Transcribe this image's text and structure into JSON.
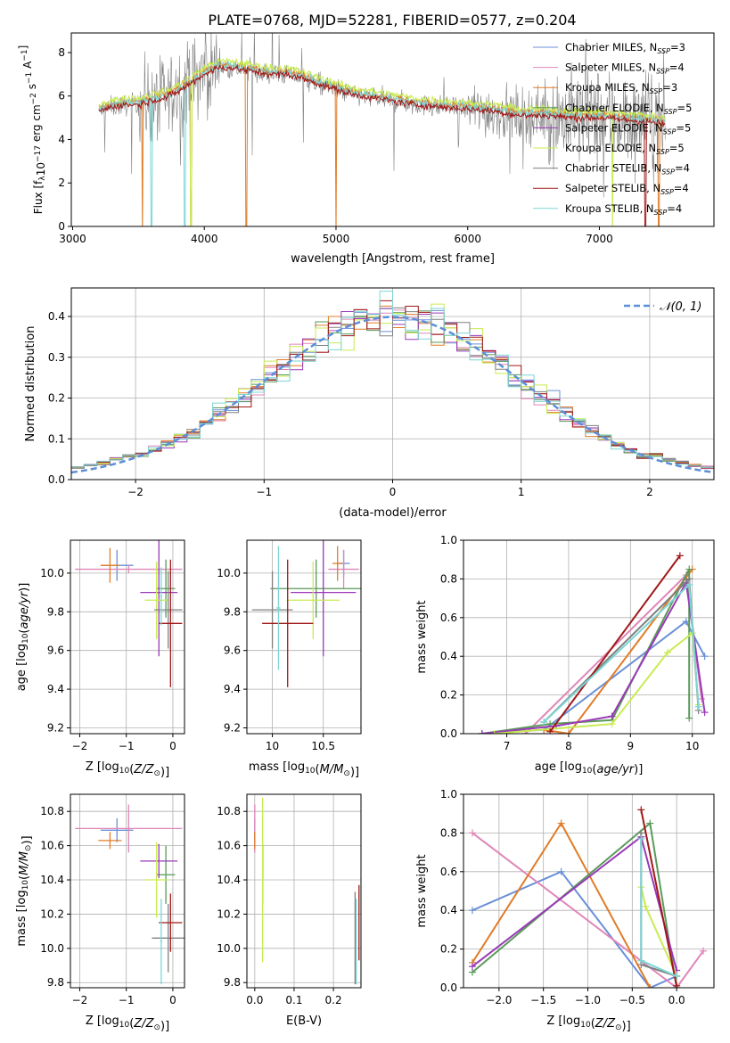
{
  "title": "PLATE=0768, MJD=52281, FIBERID=0577, z=0.204",
  "colors": {
    "blue": "#6a8fd8",
    "pink": "#e086b8",
    "orange": "#e07c28",
    "green": "#5a9a5a",
    "purple": "#9a3ab8",
    "lime": "#c8ec50",
    "gray": "#808080",
    "red": "#a01818",
    "cyan": "#7cd6d6",
    "dashed": "#5b8fd9",
    "grid": "#b0b0b0"
  },
  "chart_data": [
    {
      "id": "spectrum",
      "type": "line",
      "xlabel": "wavelength [Angstrom, rest frame]",
      "ylabel_main": "Flux [f",
      "ylabel_sub": "λ",
      "ylabel_rest": "10",
      "ylabel_exp": "−17",
      "ylabel_tail": " erg cm",
      "ylabel_exp2": "−2",
      "ylabel_tail2": " s",
      "ylabel_exp3": "−1",
      "ylabel_tail3": " A",
      "ylabel_exp4": "−1",
      "ylabel_end": "]",
      "xlim": [
        2990,
        7870
      ],
      "ylim": [
        0,
        8.9
      ],
      "xticks": [
        3000,
        4000,
        5000,
        6000,
        7000
      ],
      "yticks": [
        0,
        2,
        4,
        6,
        8
      ],
      "continuum": {
        "x": [
          3200,
          3300,
          3400,
          3500,
          3600,
          3700,
          3800,
          3900,
          4000,
          4100,
          4200,
          4300,
          4400,
          4500,
          4600,
          4700,
          4800,
          4900,
          5000,
          5100,
          5200,
          5400,
          5600,
          5800,
          6000,
          6200,
          6400,
          6600,
          6800,
          7000,
          7200,
          7400,
          7500
        ],
        "y": [
          5.3,
          5.5,
          5.6,
          5.6,
          5.8,
          5.9,
          6.2,
          6.6,
          7.0,
          7.3,
          7.3,
          7.2,
          7.1,
          7.0,
          7.0,
          6.9,
          6.7,
          6.5,
          6.3,
          6.1,
          6.0,
          5.8,
          5.6,
          5.5,
          5.4,
          5.3,
          5.1,
          5.1,
          5.0,
          5.0,
          4.9,
          4.8,
          4.7
        ]
      },
      "legend_position": "top-right",
      "legend": [
        {
          "label": "Chabrier MILES, N",
          "sub": "SSP",
          "tail": "=3",
          "color": "blue"
        },
        {
          "label": "Salpeter MILES, N",
          "sub": "SSP",
          "tail": "=4",
          "color": "pink"
        },
        {
          "label": "Kroupa MILES, N",
          "sub": "SSP",
          "tail": "=3",
          "color": "orange"
        },
        {
          "label": "Chabrier ELODIE, N",
          "sub": "SSP",
          "tail": "=5",
          "color": "green"
        },
        {
          "label": "Salpeter ELODIE, N",
          "sub": "SSP",
          "tail": "=5",
          "color": "purple"
        },
        {
          "label": "Kroupa ELODIE, N",
          "sub": "SSP",
          "tail": "=5",
          "color": "lime"
        },
        {
          "label": "Chabrier STELIB, N",
          "sub": "SSP",
          "tail": "=4",
          "color": "gray"
        },
        {
          "label": "Salpeter STELIB, N",
          "sub": "SSP",
          "tail": "=4",
          "color": "red"
        },
        {
          "label": "Kroupa STELIB, N",
          "sub": "SSP",
          "tail": "=4",
          "color": "cyan"
        }
      ]
    },
    {
      "id": "residuals",
      "type": "line",
      "xlabel": "(data-model)/error",
      "ylabel": "Normed distribution",
      "xlim": [
        -2.5,
        2.5
      ],
      "ylim": [
        0,
        0.47
      ],
      "xticks": [
        -2,
        -1,
        0,
        1,
        2
      ],
      "yticks": [
        0.0,
        0.1,
        0.2,
        0.3,
        0.4
      ],
      "gaussian_label": "𝒩(0, 1)",
      "legend_position": "top-right",
      "bin_width": 0.1
    },
    {
      "id": "age_vs_Z",
      "type": "scatter",
      "xlabel": "Z [log",
      "xlabel_sub": "10",
      "xlabel_rest": "(Z/Z",
      "xlabel_sun": "⊙",
      "xlabel_end": ")]",
      "ylabel": "age  [log",
      "ylabel_sub": "10",
      "ylabel_rest": "(age/yr)]",
      "xlim": [
        -2.2,
        0.25
      ],
      "ylim": [
        9.17,
        10.17
      ],
      "xticks": [
        -2,
        -1,
        0
      ],
      "yticks": [
        9.2,
        9.4,
        9.6,
        9.8,
        10.0
      ],
      "points": [
        {
          "color": "blue",
          "x": -1.2,
          "xerr": 0.35,
          "y": 10.04,
          "yerr": 0.08
        },
        {
          "color": "pink",
          "x": -0.95,
          "xerr": 1.15,
          "y": 10.02,
          "yerr": 0.02
        },
        {
          "color": "orange",
          "x": -1.35,
          "xerr": 0.2,
          "y": 10.04,
          "yerr": 0.09
        },
        {
          "color": "green",
          "x": -0.15,
          "xerr": 0.2,
          "y": 9.92,
          "yerr": 0.15
        },
        {
          "color": "purple",
          "x": -0.3,
          "xerr": 0.4,
          "y": 9.9,
          "yerr": 0.33
        },
        {
          "color": "lime",
          "x": -0.35,
          "xerr": 0.25,
          "y": 9.86,
          "yerr": 0.2
        },
        {
          "color": "gray",
          "x": -0.1,
          "xerr": 0.3,
          "y": 9.81,
          "yerr": 0.2
        },
        {
          "color": "red",
          "x": -0.05,
          "xerr": 0.25,
          "y": 9.74,
          "yerr": 0.33
        },
        {
          "color": "cyan",
          "x": -0.25,
          "xerr": 0.02,
          "y": 9.88,
          "yerr": 0.15
        }
      ]
    },
    {
      "id": "age_vs_mass",
      "type": "scatter",
      "xlabel": "mass [log",
      "xlabel_sub": "10",
      "xlabel_rest": "(M/M",
      "xlabel_sun": "⊙",
      "xlabel_end": ")]",
      "xlim": [
        9.75,
        10.87
      ],
      "ylim": [
        9.17,
        10.17
      ],
      "xticks": [
        10.0,
        10.5
      ],
      "xticklabels": [
        "10",
        "10.5"
      ],
      "yticks": [
        9.2,
        9.4,
        9.6,
        9.8,
        10.0
      ],
      "points": [
        {
          "color": "blue",
          "x": 10.7,
          "xerr": 0.06,
          "y": 10.05,
          "yerr": 0.07
        },
        {
          "color": "pink",
          "x": 10.7,
          "xerr": 0.15,
          "y": 10.02,
          "yerr": 0.1
        },
        {
          "color": "orange",
          "x": 10.64,
          "xerr": 0.05,
          "y": 10.05,
          "yerr": 0.09
        },
        {
          "color": "green",
          "x": 10.43,
          "xerr": 0.45,
          "y": 9.92,
          "yerr": 0.15
        },
        {
          "color": "purple",
          "x": 10.5,
          "xerr": 0.32,
          "y": 9.9,
          "yerr": 0.33
        },
        {
          "color": "lime",
          "x": 10.4,
          "xerr": 0.26,
          "y": 9.86,
          "yerr": 0.2
        },
        {
          "color": "gray",
          "x": 10.0,
          "xerr": 0.2,
          "y": 9.81,
          "yerr": 0.2
        },
        {
          "color": "red",
          "x": 10.15,
          "xerr": 0.25,
          "y": 9.74,
          "yerr": 0.33
        },
        {
          "color": "cyan",
          "x": 10.06,
          "xerr": 0.02,
          "y": 9.82,
          "yerr": 0.32
        }
      ]
    },
    {
      "id": "weight_vs_age",
      "type": "line",
      "xlabel": "age  [log",
      "xlabel_sub": "10",
      "xlabel_rest": "(age/yr)]",
      "ylabel": "mass weight",
      "xlim": [
        6.3,
        10.35
      ],
      "ylim": [
        0,
        1.0
      ],
      "xticks": [
        7,
        8,
        9,
        10
      ],
      "yticks": [
        0.0,
        0.2,
        0.4,
        0.6,
        0.8,
        1.0
      ],
      "series": [
        {
          "color": "blue",
          "x": [
            6.6,
            7.6,
            9.9,
            10.2
          ],
          "y": [
            0.0,
            0.02,
            0.58,
            0.4
          ]
        },
        {
          "color": "pink",
          "x": [
            7.3,
            9.9,
            10.15
          ],
          "y": [
            0.0,
            0.82,
            0.18
          ]
        },
        {
          "color": "orange",
          "x": [
            7.6,
            8.0,
            10.0
          ],
          "y": [
            0.02,
            0.0,
            0.85
          ]
        },
        {
          "color": "green",
          "x": [
            6.6,
            7.7,
            8.7,
            9.95,
            9.95
          ],
          "y": [
            0.0,
            0.05,
            0.07,
            0.85,
            0.08
          ]
        },
        {
          "color": "purple",
          "x": [
            6.6,
            7.8,
            8.7,
            9.9,
            10.2
          ],
          "y": [
            0.0,
            0.04,
            0.09,
            0.78,
            0.11
          ]
        },
        {
          "color": "lime",
          "x": [
            6.8,
            8.7,
            9.6,
            10.0,
            10.1
          ],
          "y": [
            0.0,
            0.05,
            0.42,
            0.52,
            0.15
          ]
        },
        {
          "color": "gray",
          "x": [
            7.6,
            9.95,
            10.1
          ],
          "y": [
            0.06,
            0.8,
            0.12
          ]
        },
        {
          "color": "red",
          "x": [
            7.7,
            9.8
          ],
          "y": [
            0.01,
            0.92
          ]
        },
        {
          "color": "cyan",
          "x": [
            7.6,
            9.95,
            10.1
          ],
          "y": [
            0.06,
            0.77,
            0.14
          ]
        }
      ]
    },
    {
      "id": "mass_vs_Z",
      "type": "scatter",
      "xlabel": "Z [log",
      "xlabel_sub": "10",
      "xlabel_rest": "(Z/Z",
      "xlabel_sun": "⊙",
      "xlabel_end": ")]",
      "ylabel": "mass [log",
      "ylabel_sub": "10",
      "ylabel_rest": "(M/M",
      "ylabel_sun": "⊙",
      "ylabel_end": ")]",
      "xlim": [
        -2.2,
        0.25
      ],
      "ylim": [
        9.77,
        10.9
      ],
      "xticks": [
        -2,
        -1,
        0
      ],
      "yticks": [
        9.8,
        10.0,
        10.2,
        10.4,
        10.6,
        10.8
      ],
      "points": [
        {
          "color": "blue",
          "x": -1.2,
          "xerr": 0.35,
          "y": 10.69,
          "yerr": 0.07
        },
        {
          "color": "pink",
          "x": -0.95,
          "xerr": 1.15,
          "y": 10.7,
          "yerr": 0.14
        },
        {
          "color": "orange",
          "x": -1.35,
          "xerr": 0.25,
          "y": 10.63,
          "yerr": 0.05
        },
        {
          "color": "green",
          "x": -0.15,
          "xerr": 0.2,
          "y": 10.43,
          "yerr": 0.17
        },
        {
          "color": "purple",
          "x": -0.3,
          "xerr": 0.4,
          "y": 10.51,
          "yerr": 0.1
        },
        {
          "color": "lime",
          "x": -0.35,
          "xerr": 0.25,
          "y": 10.4,
          "yerr": 0.22
        },
        {
          "color": "gray",
          "x": -0.1,
          "xerr": 0.35,
          "y": 10.06,
          "yerr": 0.2
        },
        {
          "color": "red",
          "x": -0.05,
          "xerr": 0.25,
          "y": 10.15,
          "yerr": 0.17
        },
        {
          "color": "cyan",
          "x": -0.25,
          "xerr": 0.02,
          "y": 10.04,
          "yerr": 0.25
        }
      ]
    },
    {
      "id": "mass_vs_EBV",
      "type": "scatter",
      "xlabel": "E(B-V)",
      "xlim": [
        -0.02,
        0.27
      ],
      "ylim": [
        9.77,
        10.9
      ],
      "xticks": [
        0.0,
        0.1,
        0.2
      ],
      "yticks": [
        9.8,
        10.0,
        10.2,
        10.4,
        10.6,
        10.8
      ],
      "points": [
        {
          "color": "blue",
          "x": 0.0,
          "y": 10.69,
          "yerr": 0.07
        },
        {
          "color": "pink",
          "x": 0.0,
          "y": 10.7,
          "yerr": 0.14
        },
        {
          "color": "orange",
          "x": 0.0,
          "y": 10.63,
          "yerr": 0.05
        },
        {
          "color": "green",
          "x": 0.02,
          "y": 10.43,
          "yerr": 0.17
        },
        {
          "color": "purple",
          "x": 0.02,
          "y": 10.51,
          "yerr": 0.1
        },
        {
          "color": "lime",
          "x": 0.02,
          "y": 10.4,
          "yerr": 0.48
        },
        {
          "color": "gray",
          "x": 0.255,
          "y": 10.06,
          "yerr": 0.27
        },
        {
          "color": "red",
          "x": 0.265,
          "y": 10.15,
          "yerr": 0.22
        },
        {
          "color": "cyan",
          "x": 0.258,
          "y": 10.04,
          "yerr": 0.25
        }
      ]
    },
    {
      "id": "weight_vs_Z",
      "type": "line",
      "xlabel": "Z [log",
      "xlabel_sub": "10",
      "xlabel_rest": "(Z/Z",
      "xlabel_sun": "⊙",
      "xlabel_end": ")]",
      "ylabel": "mass weight",
      "xlim": [
        -2.4,
        0.42
      ],
      "ylim": [
        0,
        1.0
      ],
      "xticks": [
        -2.0,
        -1.5,
        -1.0,
        -0.5,
        0.0
      ],
      "xticklabels": [
        "−2.0",
        "−1.5",
        "−1.0",
        "−0.5",
        "0.0"
      ],
      "yticks": [
        0.0,
        0.2,
        0.4,
        0.6,
        0.8,
        1.0
      ],
      "series": [
        {
          "color": "blue",
          "x": [
            -2.3,
            -1.3,
            -0.3,
            0.0
          ],
          "y": [
            0.4,
            0.6,
            0.0,
            0.06
          ]
        },
        {
          "color": "pink",
          "x": [
            -2.3,
            0.0,
            0.3
          ],
          "y": [
            0.8,
            0.0,
            0.19
          ]
        },
        {
          "color": "orange",
          "x": [
            -2.3,
            -1.3,
            -0.3
          ],
          "y": [
            0.13,
            0.85,
            0.0
          ]
        },
        {
          "color": "green",
          "x": [
            -2.3,
            -0.3,
            0.0
          ],
          "y": [
            0.08,
            0.85,
            0.0
          ]
        },
        {
          "color": "purple",
          "x": [
            -2.3,
            -0.4,
            0.0
          ],
          "y": [
            0.11,
            0.78,
            0.09
          ]
        },
        {
          "color": "lime",
          "x": [
            -0.4,
            -0.35,
            0.0
          ],
          "y": [
            0.52,
            0.42,
            0.06
          ]
        },
        {
          "color": "gray",
          "x": [
            -0.4,
            -0.4,
            0.0
          ],
          "y": [
            0.8,
            0.12,
            0.06
          ]
        },
        {
          "color": "red",
          "x": [
            -0.4,
            0.0
          ],
          "y": [
            0.92,
            0.01
          ]
        },
        {
          "color": "cyan",
          "x": [
            -0.4,
            -0.4,
            0.0
          ],
          "y": [
            0.77,
            0.14,
            0.06
          ]
        }
      ]
    }
  ]
}
